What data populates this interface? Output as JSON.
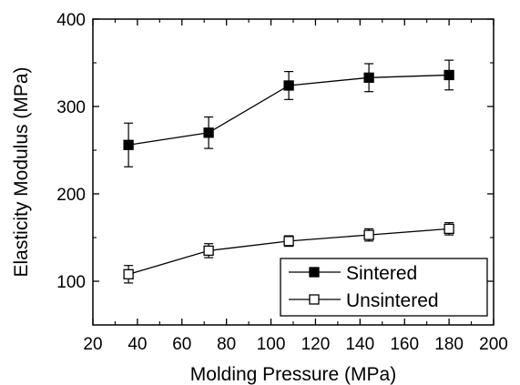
{
  "chart_data": {
    "type": "scatter",
    "xlabel": "Molding Pressure (MPa)",
    "ylabel": "Elasticity Modulus (MPa)",
    "xlim": [
      20,
      200
    ],
    "ylim": [
      50,
      400
    ],
    "xticks": [
      20,
      40,
      60,
      80,
      100,
      120,
      140,
      160,
      180,
      200
    ],
    "yticks": [
      100,
      200,
      300,
      400
    ],
    "grid": false,
    "legend_position": "bottom-right",
    "series": [
      {
        "name": "Sintered",
        "marker": "filled-square",
        "color": "#000000",
        "x": [
          36,
          72,
          108,
          144,
          180
        ],
        "y": [
          256,
          270,
          324,
          333,
          336
        ],
        "err": [
          25,
          18,
          16,
          16,
          17
        ]
      },
      {
        "name": "Unsintered",
        "marker": "open-square",
        "color": "#000000",
        "x": [
          36,
          72,
          108,
          144,
          180
        ],
        "y": [
          108,
          135,
          146,
          153,
          160
        ],
        "err": [
          10,
          8,
          6,
          7,
          7
        ]
      }
    ]
  }
}
